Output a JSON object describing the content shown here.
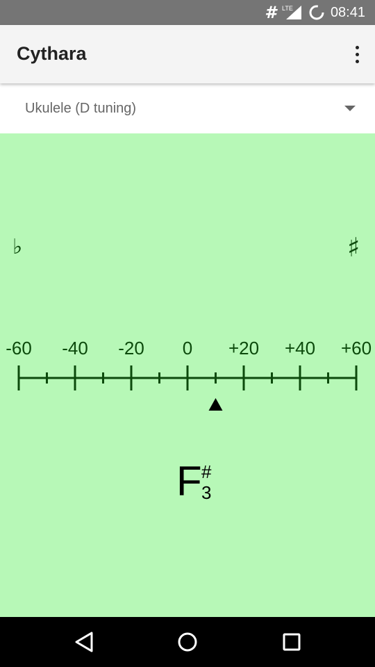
{
  "status_bar": {
    "left_icon": "hash-icon",
    "network": "LTE",
    "time": "08:41",
    "hash_glyph": "#"
  },
  "app_bar": {
    "title": "Cythara",
    "menu_icon": "more-vert-icon"
  },
  "instrument_select": {
    "selected": "Ukulele (D tuning)"
  },
  "tuner": {
    "flat_symbol": "♭",
    "sharp_symbol": "♯",
    "scale_labels": [
      "-60",
      "-40",
      "-20",
      "0",
      "+20",
      "+40",
      "+60"
    ],
    "scale_min": -60,
    "scale_max": 60,
    "pointer_cents": 10,
    "note": {
      "letter": "F",
      "accidental": "#",
      "octave": "3"
    },
    "color": "#b7f8b7",
    "scale_color": "#0c4a0c"
  },
  "nav_bar": {
    "back_icon": "back-triangle-icon",
    "home_icon": "home-circle-icon",
    "recents_icon": "recents-square-icon"
  }
}
